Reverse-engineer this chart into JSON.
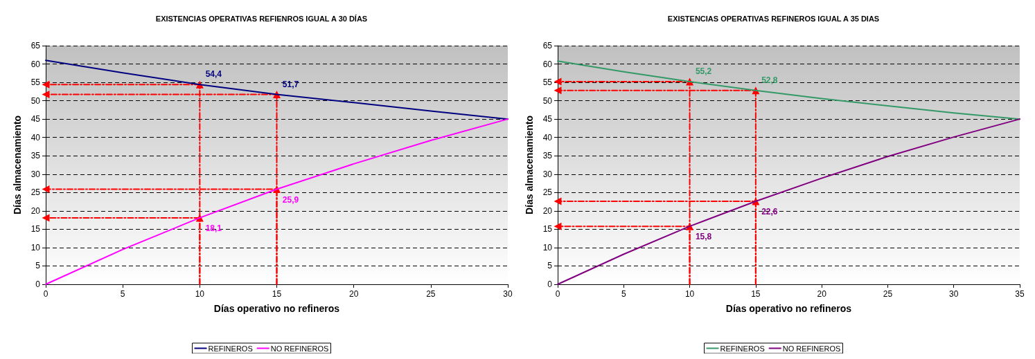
{
  "chart_data": [
    {
      "type": "line",
      "title": "EXISTENCIAS OPERATIVAS REFIENROS IGUAL A 30 DÍAS",
      "xlabel": "Días operativo no refineros",
      "ylabel": "Días almacenamiento",
      "xlim": [
        0,
        30
      ],
      "xticks": [
        0,
        5,
        10,
        15,
        20,
        25,
        30
      ],
      "ylim": [
        0,
        65
      ],
      "yticks": [
        0,
        5,
        10,
        15,
        20,
        25,
        30,
        35,
        40,
        45,
        50,
        55,
        60,
        65
      ],
      "grid": "y",
      "legend": "bottom",
      "marker": "none",
      "line_style": "solid",
      "series": [
        {
          "name": "REFINEROS",
          "color": "#000080",
          "x": [
            0,
            5,
            10,
            15,
            20,
            25,
            30
          ],
          "values": [
            61,
            57.6,
            54.4,
            51.7,
            49.5,
            47.2,
            45
          ],
          "value_labels": [
            null,
            null,
            "54,4",
            "51,7",
            null,
            null,
            null
          ]
        },
        {
          "name": "NO REFINEROS",
          "color": "#ff00ff",
          "x": [
            0,
            5,
            10,
            15,
            20,
            25,
            30
          ],
          "values": [
            0,
            9.5,
            18.1,
            25.9,
            32.8,
            39.2,
            45
          ],
          "value_labels": [
            null,
            null,
            "18,1",
            "25,9",
            null,
            null,
            null
          ]
        },
        {
          "color": "#ff0000",
          "line_style": "dashed",
          "marker": "triangle",
          "x": [
            10,
            10,
            0
          ],
          "values": [
            0,
            54.4,
            54.4
          ]
        },
        {
          "color": "#ff0000",
          "line_style": "dashed",
          "marker": "triangle",
          "x": [
            15,
            15,
            0
          ],
          "values": [
            0,
            51.7,
            51.7
          ]
        },
        {
          "color": "#ff0000",
          "line_style": "dashed",
          "marker": "triangle",
          "x": [
            10,
            10,
            0
          ],
          "values": [
            0,
            18.1,
            18.1
          ]
        },
        {
          "color": "#ff0000",
          "line_style": "dashed",
          "marker": "triangle",
          "x": [
            15,
            15,
            0
          ],
          "values": [
            0,
            25.9,
            25.9
          ]
        }
      ]
    },
    {
      "type": "line",
      "title": "EXISTENCIAS OPERATIVAS REFINEROS IGUAL A 35 DIAS",
      "xlabel": "Días operativo no refineros",
      "ylabel": "Días almacenamiento",
      "xlim": [
        0,
        35
      ],
      "xticks": [
        0,
        5,
        10,
        15,
        20,
        25,
        30,
        35
      ],
      "ylim": [
        0,
        65
      ],
      "yticks": [
        0,
        5,
        10,
        15,
        20,
        25,
        30,
        35,
        40,
        45,
        50,
        55,
        60,
        65
      ],
      "grid": "y",
      "legend": "bottom",
      "marker": "none",
      "line_style": "solid",
      "series": [
        {
          "name": "REFINEROS",
          "color": "#339966",
          "x": [
            0,
            5,
            10,
            15,
            20,
            25,
            30,
            35
          ],
          "values": [
            60.8,
            57.9,
            55.2,
            52.8,
            50.6,
            48.6,
            46.7,
            45
          ],
          "value_labels": [
            null,
            null,
            "55,2",
            "52,8",
            null,
            null,
            null,
            null
          ]
        },
        {
          "name": "NO REFINEROS",
          "color": "#800080",
          "x": [
            0,
            5,
            10,
            15,
            20,
            25,
            30,
            35
          ],
          "values": [
            0,
            8.2,
            15.8,
            22.6,
            28.9,
            34.8,
            40.1,
            45
          ],
          "value_labels": [
            null,
            null,
            "15,8",
            "22,6",
            null,
            null,
            null,
            null
          ]
        },
        {
          "color": "#ff0000",
          "line_style": "dashed",
          "marker": "triangle",
          "x": [
            10,
            10,
            0
          ],
          "values": [
            0,
            55.2,
            55.2
          ]
        },
        {
          "color": "#ff0000",
          "line_style": "dashed",
          "marker": "triangle",
          "x": [
            15,
            15,
            0
          ],
          "values": [
            0,
            52.8,
            52.8
          ]
        },
        {
          "color": "#ff0000",
          "line_style": "dashed",
          "marker": "triangle",
          "x": [
            10,
            10,
            0
          ],
          "values": [
            0,
            15.8,
            15.8
          ]
        },
        {
          "color": "#ff0000",
          "line_style": "dashed",
          "marker": "triangle",
          "x": [
            15,
            15,
            0
          ],
          "values": [
            0,
            22.6,
            22.6
          ]
        }
      ]
    }
  ]
}
